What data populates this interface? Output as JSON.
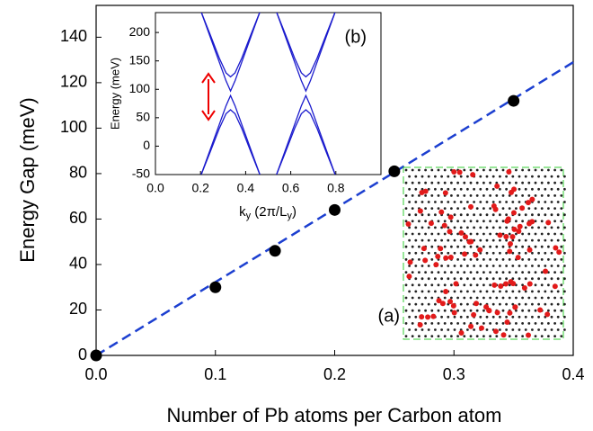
{
  "chart_data": [
    {
      "type": "scatter",
      "x_label": "Number of Pb atoms per Carbon atom",
      "y_label": "Energy Gap (meV)",
      "x": [
        0,
        0.1,
        0.15,
        0.2,
        0.25,
        0.35
      ],
      "values": [
        0,
        30,
        46,
        64,
        81,
        112
      ],
      "color": "#000000",
      "fit": {
        "x": [
          0,
          0.4
        ],
        "values": [
          0,
          129
        ],
        "color": "#1c3fd0"
      },
      "xlim": [
        0,
        0.4
      ],
      "xticks": [
        {
          "value": 0,
          "label": "0.0"
        },
        0.1,
        0.2,
        0.3,
        0.4
      ],
      "ylim": [
        0,
        154
      ],
      "yticks": [
        0,
        20,
        40,
        60,
        80,
        100,
        120,
        140
      ],
      "annotation": "(a)"
    },
    {
      "type": "line",
      "annotation": "(b)",
      "y_label": "Energy (meV)",
      "x_label_parts": [
        "k",
        "y",
        " (2π/L",
        "y",
        ")"
      ],
      "xlim": [
        0,
        1
      ],
      "xticks": [
        {
          "value": 0,
          "label": "0.0"
        },
        0.2,
        0.4,
        0.6,
        0.8
      ],
      "ylim": [
        -50,
        235
      ],
      "yticks": [
        -50,
        0,
        50,
        100,
        150,
        200
      ],
      "color": "#1a1acd",
      "series": [
        {
          "x": [
            0.203,
            0.243,
            0.283,
            0.313,
            0.333,
            0.353,
            0.383,
            0.423,
            0.463
          ],
          "values": [
            236,
            196,
            155,
            129,
            122,
            129,
            155,
            196,
            236
          ]
        },
        {
          "x": [
            0.203,
            0.243,
            0.283,
            0.313,
            0.333,
            0.353,
            0.383,
            0.423,
            0.463
          ],
          "values": [
            236,
            192,
            148,
            115,
            97,
            115,
            148,
            192,
            236
          ]
        },
        {
          "x": [
            0.203,
            0.243,
            0.283,
            0.313,
            0.333,
            0.353,
            0.383,
            0.423,
            0.463
          ],
          "values": [
            -50,
            -6,
            38,
            71,
            89,
            71,
            38,
            -6,
            -50
          ]
        },
        {
          "x": [
            0.203,
            0.243,
            0.283,
            0.313,
            0.333,
            0.353,
            0.383,
            0.423,
            0.463
          ],
          "values": [
            -50,
            -10,
            31,
            57,
            64,
            57,
            31,
            -10,
            -50
          ]
        },
        {
          "x": [
            0.537,
            0.577,
            0.617,
            0.647,
            0.667,
            0.687,
            0.717,
            0.757,
            0.797
          ],
          "values": [
            236,
            196,
            155,
            129,
            122,
            129,
            155,
            196,
            236
          ]
        },
        {
          "x": [
            0.537,
            0.577,
            0.617,
            0.647,
            0.667,
            0.687,
            0.717,
            0.757,
            0.797
          ],
          "values": [
            236,
            192,
            148,
            115,
            97,
            115,
            148,
            192,
            236
          ]
        },
        {
          "x": [
            0.537,
            0.577,
            0.617,
            0.647,
            0.667,
            0.687,
            0.717,
            0.757,
            0.797
          ],
          "values": [
            -50,
            -6,
            38,
            71,
            89,
            71,
            38,
            -6,
            -50
          ]
        },
        {
          "x": [
            0.537,
            0.577,
            0.617,
            0.647,
            0.667,
            0.687,
            0.717,
            0.757,
            0.797
          ],
          "values": [
            -50,
            -10,
            31,
            57,
            64,
            57,
            31,
            -10,
            -50
          ]
        }
      ]
    }
  ]
}
